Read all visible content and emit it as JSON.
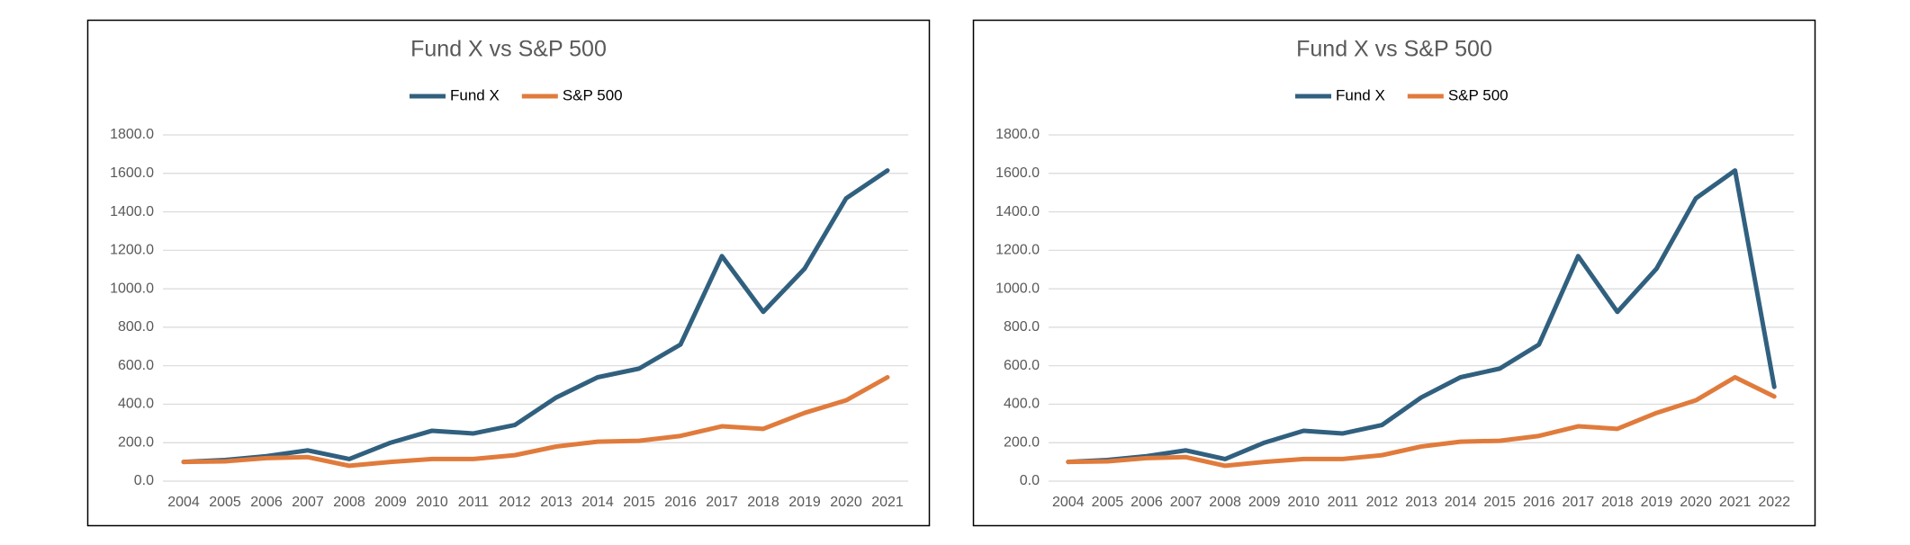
{
  "chart_data": [
    {
      "type": "line",
      "title": "Fund X vs S&P 500",
      "categories": [
        "2004",
        "2005",
        "2006",
        "2007",
        "2008",
        "2009",
        "2010",
        "2011",
        "2012",
        "2013",
        "2014",
        "2015",
        "2016",
        "2017",
        "2018",
        "2019",
        "2020",
        "2021"
      ],
      "series": [
        {
          "name": "Fund X",
          "color": "#31607f",
          "values": [
            100,
            110,
            130,
            160,
            115,
            200,
            262,
            248,
            292,
            435,
            540,
            585,
            710,
            1170,
            880,
            1105,
            1470,
            1615
          ]
        },
        {
          "name": "S&P 500",
          "color": "#e07b3c",
          "values": [
            100,
            103,
            120,
            125,
            80,
            100,
            115,
            115,
            135,
            180,
            205,
            210,
            235,
            285,
            272,
            355,
            420,
            540
          ]
        }
      ],
      "ylim": [
        0,
        1800
      ],
      "yticks": [
        {
          "value": 0,
          "label": "0.0"
        },
        {
          "value": 200,
          "label": "200.0"
        },
        {
          "value": 400,
          "label": "400.0"
        },
        {
          "value": 600,
          "label": "600.0"
        },
        {
          "value": 800,
          "label": "800.0"
        },
        {
          "value": 1000,
          "label": "1000.0"
        },
        {
          "value": 1200,
          "label": "1200.0"
        },
        {
          "value": 1400,
          "label": "1400.0"
        },
        {
          "value": 1600,
          "label": "1600.0"
        },
        {
          "value": 1800,
          "label": "1800.0"
        }
      ],
      "grid": true,
      "legend": "top"
    },
    {
      "type": "line",
      "title": "Fund X vs S&P 500",
      "categories": [
        "2004",
        "2005",
        "2006",
        "2007",
        "2008",
        "2009",
        "2010",
        "2011",
        "2012",
        "2013",
        "2014",
        "2015",
        "2016",
        "2017",
        "2018",
        "2019",
        "2020",
        "2021",
        "2022"
      ],
      "series": [
        {
          "name": "Fund X",
          "color": "#31607f",
          "values": [
            100,
            110,
            130,
            160,
            115,
            200,
            262,
            248,
            292,
            435,
            540,
            585,
            710,
            1170,
            880,
            1105,
            1470,
            1615,
            490
          ]
        },
        {
          "name": "S&P 500",
          "color": "#e07b3c",
          "values": [
            100,
            103,
            120,
            125,
            80,
            100,
            115,
            115,
            135,
            180,
            205,
            210,
            235,
            285,
            272,
            355,
            420,
            540,
            440
          ]
        }
      ],
      "ylim": [
        0,
        1800
      ],
      "yticks": [
        {
          "value": 0,
          "label": "0.0"
        },
        {
          "value": 200,
          "label": "200.0"
        },
        {
          "value": 400,
          "label": "400.0"
        },
        {
          "value": 600,
          "label": "600.0"
        },
        {
          "value": 800,
          "label": "800.0"
        },
        {
          "value": 1000,
          "label": "1000.0"
        },
        {
          "value": 1200,
          "label": "1200.0"
        },
        {
          "value": 1400,
          "label": "1400.0"
        },
        {
          "value": 1600,
          "label": "1600.0"
        },
        {
          "value": 1800,
          "label": "1800.0"
        }
      ],
      "grid": true,
      "legend": "top"
    }
  ]
}
